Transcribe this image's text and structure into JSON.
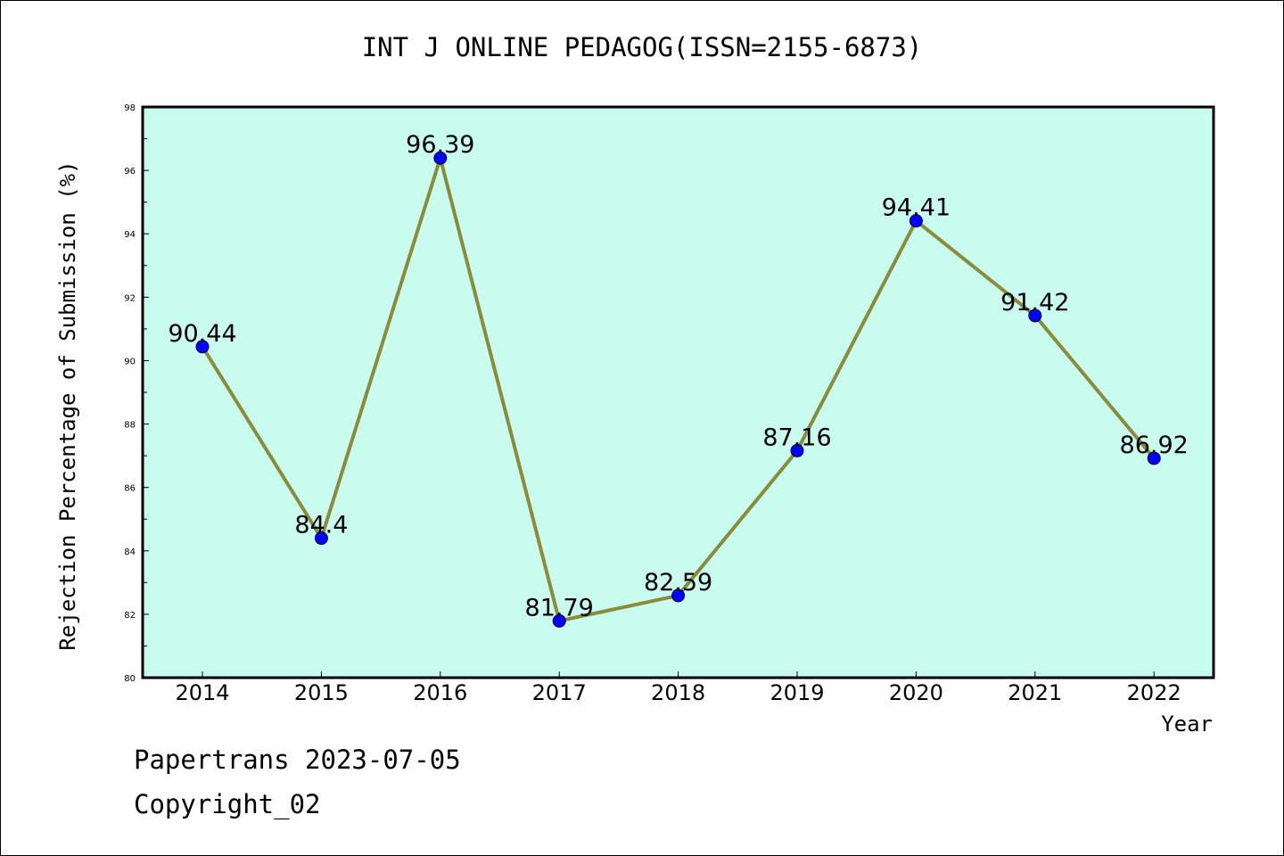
{
  "chart_data": {
    "type": "line",
    "title": "INT J ONLINE PEDAGOG(ISSN=2155-6873)",
    "xlabel": "Year",
    "ylabel": "Rejection Percentage of Submission (%)",
    "categories": [
      "2014",
      "2015",
      "2016",
      "2017",
      "2018",
      "2019",
      "2020",
      "2021",
      "2022"
    ],
    "values": [
      90.44,
      84.4,
      96.39,
      81.79,
      82.59,
      87.16,
      94.41,
      91.42,
      86.92
    ],
    "data_labels": [
      "90.44",
      "84.4",
      "96.39",
      "81.79",
      "82.59",
      "87.16",
      "94.41",
      "91.42",
      "86.92"
    ],
    "ylim": [
      80,
      98
    ],
    "yticks": [
      "80",
      "82",
      "84",
      "86",
      "88",
      "90",
      "92",
      "94",
      "96",
      "98"
    ],
    "grid": false,
    "colors": {
      "plot_background": "#c8fcee",
      "line": "#8b8b3a",
      "marker": "#0000ff"
    }
  },
  "footer": {
    "line1": "Papertrans 2023-07-05",
    "line2": "Copyright_02"
  }
}
